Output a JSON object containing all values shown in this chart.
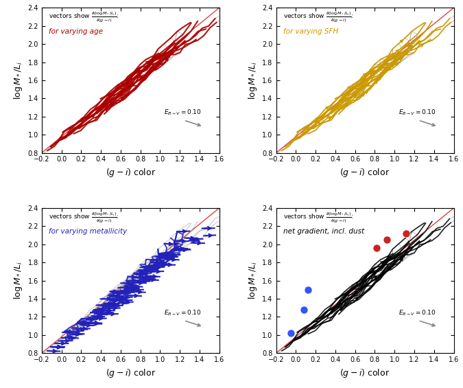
{
  "xlim": [
    -0.2,
    1.6
  ],
  "ylim": [
    0.8,
    2.4
  ],
  "xticks": [
    -0.2,
    0.0,
    0.2,
    0.4,
    0.6,
    0.8,
    1.0,
    1.2,
    1.4,
    1.6
  ],
  "yticks": [
    0.8,
    1.0,
    1.2,
    1.4,
    1.6,
    1.8,
    2.0,
    2.2,
    2.4
  ],
  "xlabel": "$(g-i)$ color",
  "ylabel": "$\\log M_*/L_i$",
  "red_line_x": [
    -0.2,
    1.6
  ],
  "red_line_y": [
    0.8,
    2.4
  ],
  "panel_labels": [
    "for varying age",
    "for varying SFH",
    "for varying metallicity",
    "net gradient, incl. dust"
  ],
  "panel_label_colors": [
    "#AA0000",
    "#CC9900",
    "#2222BB",
    "#000000"
  ],
  "dust_label": "$E_{B-V}=0.10$",
  "seed": 42,
  "n_sfh": 20,
  "n_age": 18,
  "n_met": 22,
  "n_net": 20,
  "grid_color": "#999999",
  "grid_lw": 0.5,
  "red_line_color": "#DD4444",
  "red_line_lw": 1.0,
  "dust_arrow_color": "#888888",
  "blue_dot_color": "#3355FF",
  "red_dot_color": "#CC2222"
}
